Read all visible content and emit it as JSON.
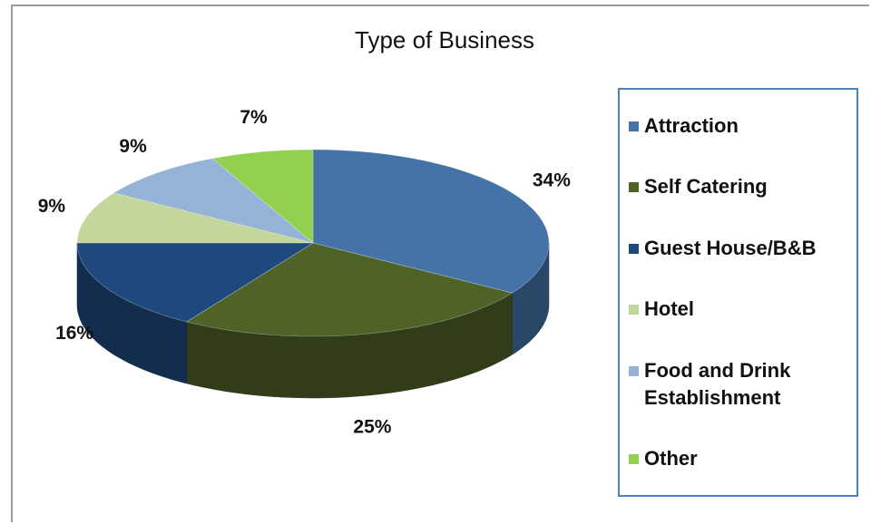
{
  "chart_data": {
    "type": "pie3d",
    "title": "Type of Business",
    "categories": [
      "Attraction",
      "Self Catering",
      "Guest House/B&B",
      "Hotel",
      "Food and Drink Establishment",
      "Other"
    ],
    "values": [
      34,
      25,
      16,
      9,
      9,
      7
    ],
    "value_labels": [
      "34%",
      "25%",
      "16%",
      "9%",
      "9%",
      "7%"
    ],
    "colors": [
      "#4572a7",
      "#4f6228",
      "#1f497d",
      "#c4d79b",
      "#95b3d7",
      "#92d050"
    ],
    "legend": "right"
  }
}
